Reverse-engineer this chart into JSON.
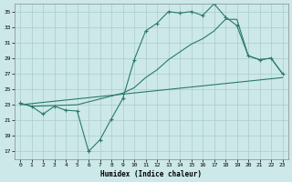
{
  "xlabel": "Humidex (Indice chaleur)",
  "bg_color": "#cce8e8",
  "line_color": "#2a7a6a",
  "grid_color": "#aacccc",
  "xlim": [
    -0.5,
    23.5
  ],
  "ylim": [
    16,
    36
  ],
  "yticks": [
    17,
    19,
    21,
    23,
    25,
    27,
    29,
    31,
    33,
    35
  ],
  "xticks": [
    0,
    1,
    2,
    3,
    4,
    5,
    6,
    7,
    8,
    9,
    10,
    11,
    12,
    13,
    14,
    15,
    16,
    17,
    18,
    19,
    20,
    21,
    22,
    23
  ],
  "line1_x": [
    0,
    1,
    2,
    3,
    4,
    5,
    6,
    7,
    8,
    9,
    10,
    11,
    12,
    13,
    14,
    15,
    16,
    17,
    18,
    19,
    20,
    21,
    22,
    23
  ],
  "line1_y": [
    23.2,
    22.8,
    21.8,
    22.8,
    22.3,
    22.2,
    17.0,
    18.5,
    21.2,
    23.8,
    28.8,
    32.5,
    33.5,
    35.0,
    34.8,
    35.0,
    34.5,
    36.0,
    34.3,
    33.2,
    29.3,
    28.8,
    29.0,
    27.0
  ],
  "line2_x": [
    0,
    1,
    5,
    9,
    10,
    11,
    12,
    13,
    14,
    15,
    16,
    17,
    18,
    19,
    20,
    21,
    22,
    23
  ],
  "line2_y": [
    23.2,
    22.8,
    23.0,
    24.5,
    25.2,
    26.5,
    27.5,
    28.8,
    29.8,
    30.8,
    31.5,
    32.5,
    34.0,
    34.0,
    29.3,
    28.8,
    29.0,
    27.0
  ],
  "line3_x": [
    0,
    23
  ],
  "line3_y": [
    23.0,
    26.5
  ]
}
